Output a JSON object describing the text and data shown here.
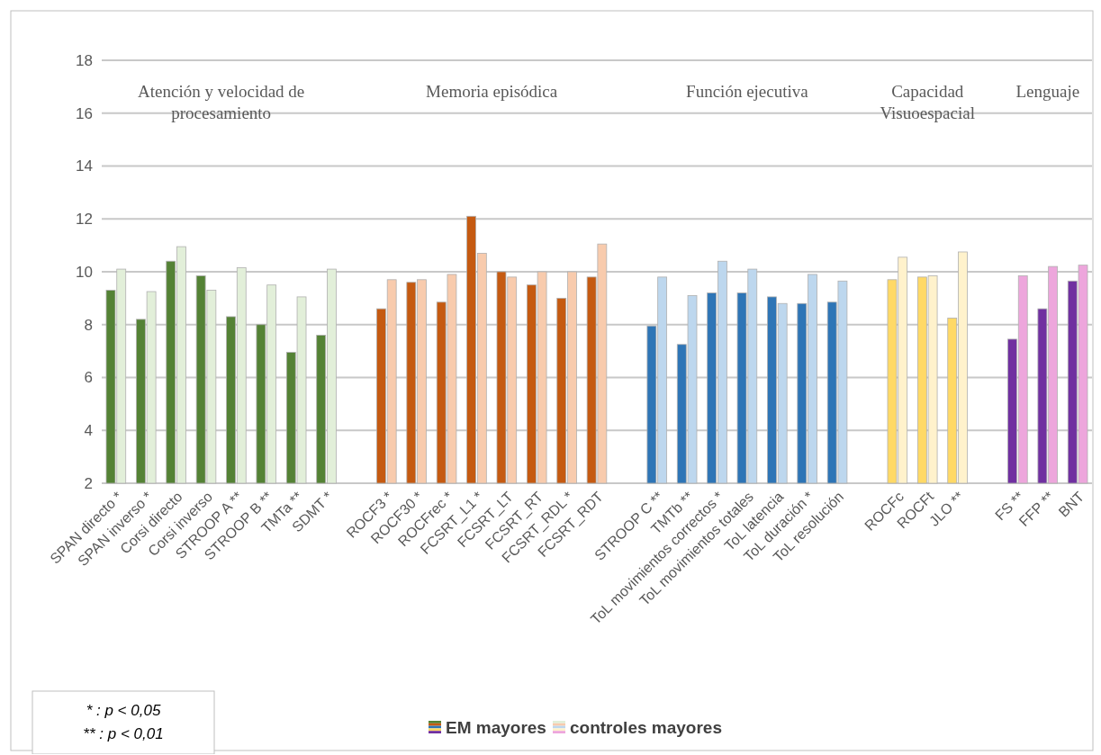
{
  "chart_data": {
    "type": "bar",
    "categories": [
      "SPAN directo *",
      "SPAN inverso *",
      "Corsi directo",
      "Corsi inverso",
      "STROOP A **",
      "STROOP B **",
      "TMTa **",
      "SDMT *",
      null,
      "ROCF3 *",
      "ROCF30 *",
      "ROCFrec *",
      "FCSRT_L1 *",
      "FCSRT_LT",
      "FCSRT_RT",
      "FCSRT_RDL *",
      "FCSRT_RDT",
      null,
      "STROOP C **",
      "TMTb **",
      "ToL movimientos correctos *",
      "ToL movimientos totales",
      "ToL latencia",
      "ToL duración *",
      "ToL resolución",
      null,
      "ROCFc",
      "ROCFt",
      "JLO **",
      null,
      "FS **",
      "FFP **",
      "BNT"
    ],
    "series": [
      {
        "name": "EM mayores",
        "values": [
          9.3,
          8.2,
          10.4,
          9.85,
          8.3,
          8.0,
          6.95,
          7.6,
          null,
          8.6,
          9.6,
          8.85,
          12.1,
          10.0,
          9.5,
          9.0,
          9.8,
          null,
          7.95,
          7.25,
          9.2,
          9.2,
          9.05,
          8.8,
          8.85,
          null,
          9.7,
          9.8,
          8.25,
          null,
          7.45,
          8.6,
          9.65
        ],
        "colors": [
          "#548235",
          "#548235",
          "#548235",
          "#548235",
          "#548235",
          "#548235",
          "#548235",
          "#548235",
          null,
          "#c55a11",
          "#c55a11",
          "#c55a11",
          "#c55a11",
          "#c55a11",
          "#c55a11",
          "#c55a11",
          "#c55a11",
          null,
          "#2e75b6",
          "#2e75b6",
          "#2e75b6",
          "#2e75b6",
          "#2e75b6",
          "#2e75b6",
          "#2e75b6",
          null,
          "#ffd966",
          "#ffd966",
          "#ffd966",
          null,
          "#7030a0",
          "#7030a0",
          "#7030a0"
        ]
      },
      {
        "name": "controles mayores",
        "values": [
          10.1,
          9.25,
          10.95,
          9.3,
          10.15,
          9.5,
          9.05,
          10.1,
          null,
          9.7,
          9.7,
          9.9,
          10.7,
          9.8,
          10.0,
          10.0,
          11.05,
          null,
          9.8,
          9.1,
          10.4,
          10.1,
          8.8,
          9.9,
          9.65,
          null,
          10.55,
          9.85,
          10.75,
          null,
          9.85,
          10.2,
          10.25
        ],
        "colors": [
          "#e2efd9",
          "#e2efd9",
          "#e2efd9",
          "#e2efd9",
          "#e2efd9",
          "#e2efd9",
          "#e2efd9",
          "#e2efd9",
          null,
          "#f8cbad",
          "#f8cbad",
          "#f8cbad",
          "#f8cbad",
          "#f8cbad",
          "#f8cbad",
          "#f8cbad",
          "#f8cbad",
          null,
          "#bdd7ee",
          "#bdd7ee",
          "#bdd7ee",
          "#bdd7ee",
          "#bdd7ee",
          "#bdd7ee",
          "#bdd7ee",
          null,
          "#fff2cc",
          "#fff2cc",
          "#fff2cc",
          null,
          "#eda6dc",
          "#eda6dc",
          "#eda6dc"
        ]
      }
    ],
    "ylim": [
      2,
      18
    ],
    "yticks": [
      2,
      4,
      6,
      8,
      10,
      12,
      14,
      16,
      18
    ],
    "grid": "y",
    "legend": "bottom",
    "annotations": [
      "Atención y velocidad de procesamiento",
      "Memoria episódica",
      "Función ejecutiva",
      "Capacidad Visuoespacial",
      "Lenguaje",
      "* : p < 0,05",
      "** : p < 0,01"
    ]
  }
}
